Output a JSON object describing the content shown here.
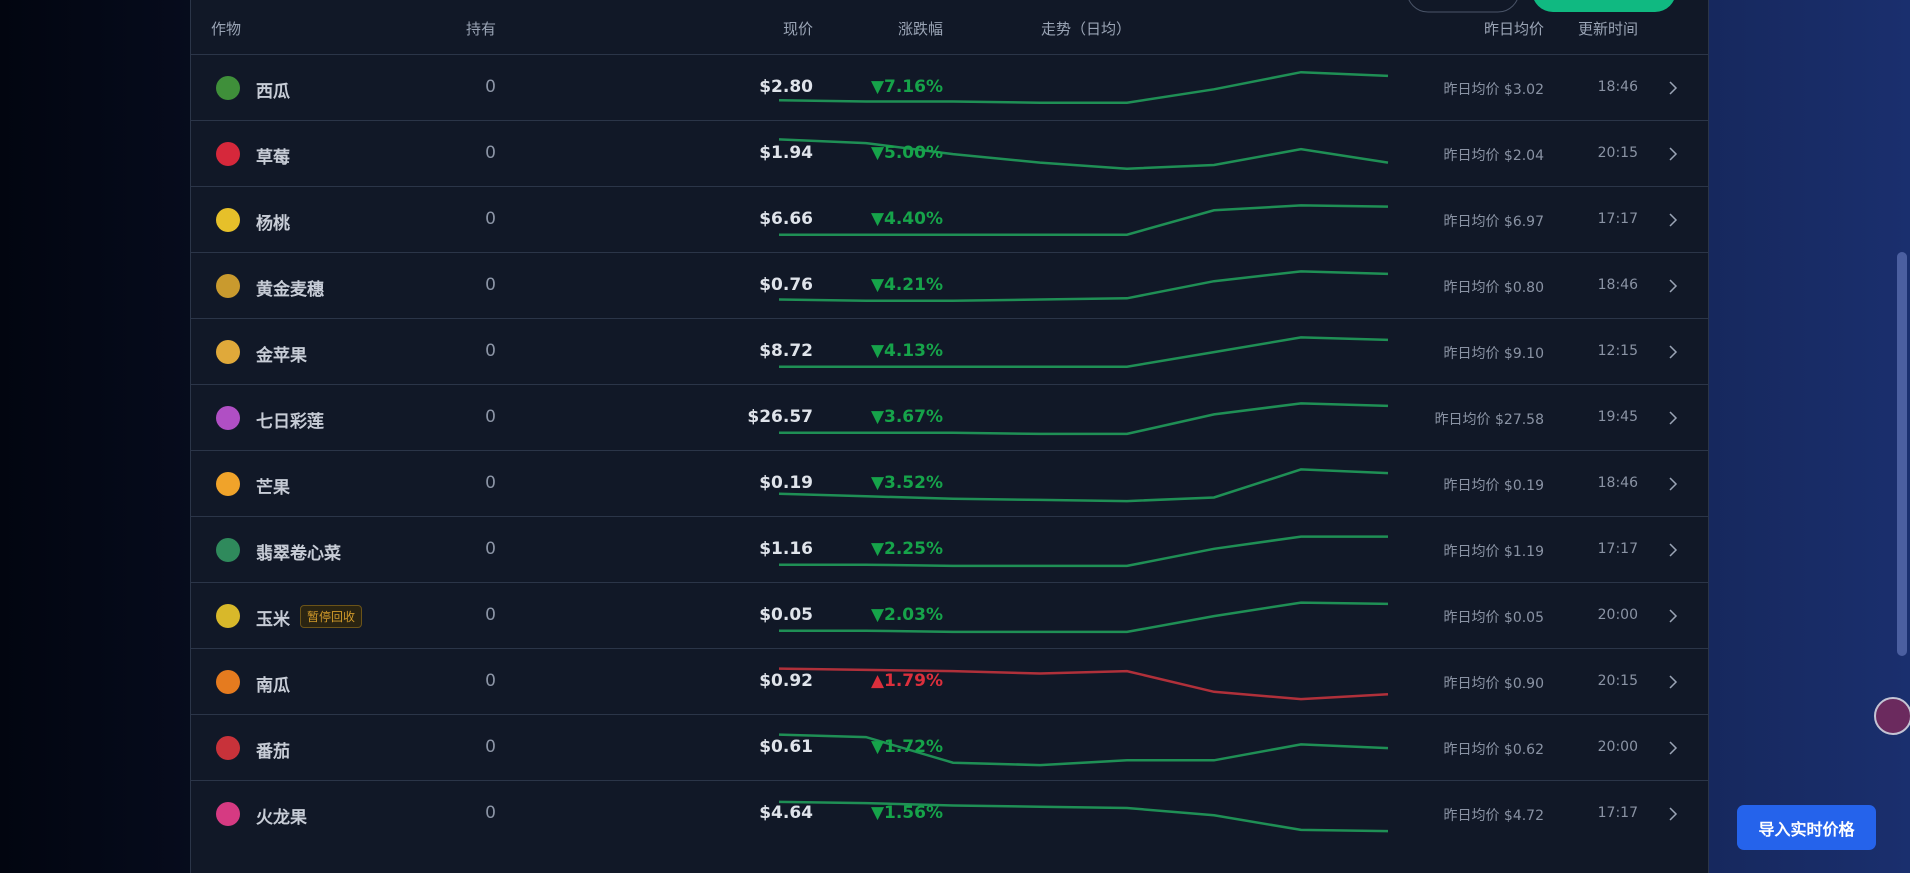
{
  "header": {
    "crop": "作物",
    "held": "持有",
    "price": "现价",
    "change": "涨跌幅",
    "trend": "走势（日均）",
    "yesterday": "昨日均价",
    "updated": "更新时间"
  },
  "rows": [
    {
      "icon_color": "#3f8f3a",
      "name": "西瓜",
      "held": "0",
      "price": "$2.80",
      "change": "▼7.16%",
      "direction": "down",
      "trend": [
        17,
        16,
        16,
        15,
        15,
        26,
        40,
        37
      ],
      "yesterday": "昨日均价 $3.02",
      "time": "18:46"
    },
    {
      "icon_color": "#d6283b",
      "name": "草莓",
      "held": "0",
      "price": "$1.94",
      "change": "▼5.00%",
      "direction": "down",
      "trend": [
        39,
        36,
        27,
        20,
        15,
        18,
        31,
        20
      ],
      "yesterday": "昨日均价 $2.04",
      "time": "20:15"
    },
    {
      "icon_color": "#e6c02a",
      "name": "杨桃",
      "held": "0",
      "price": "$6.66",
      "change": "▼4.40%",
      "direction": "down",
      "trend": [
        15,
        15,
        15,
        15,
        15,
        35,
        39,
        38
      ],
      "yesterday": "昨日均价 $6.97",
      "time": "17:17"
    },
    {
      "icon_color": "#c99a2e",
      "name": "黄金麦穗",
      "held": "0",
      "price": "$0.76",
      "change": "▼4.21%",
      "direction": "down",
      "trend": [
        16,
        15,
        15,
        16,
        17,
        31,
        39,
        37
      ],
      "yesterday": "昨日均价 $0.80",
      "time": "18:46"
    },
    {
      "icon_color": "#e0a93a",
      "name": "金苹果",
      "held": "0",
      "price": "$8.72",
      "change": "▼4.13%",
      "direction": "down",
      "trend": [
        15,
        15,
        15,
        15,
        15,
        27,
        39,
        37
      ],
      "yesterday": "昨日均价 $9.10",
      "time": "12:15"
    },
    {
      "icon_color": "#b04fc4",
      "name": "七日彩莲",
      "held": "0",
      "price": "$26.57",
      "change": "▼3.67%",
      "direction": "down",
      "trend": [
        15,
        15,
        15,
        14,
        14,
        30,
        39,
        37
      ],
      "yesterday": "昨日均价 $27.58",
      "time": "19:45"
    },
    {
      "icon_color": "#f0a32a",
      "name": "芒果",
      "held": "0",
      "price": "$0.19",
      "change": "▼3.52%",
      "direction": "down",
      "trend": [
        19,
        17,
        15,
        14,
        13,
        16,
        39,
        36
      ],
      "yesterday": "昨日均价 $0.19",
      "time": "18:46"
    },
    {
      "icon_color": "#2f8a5c",
      "name": "翡翠卷心菜",
      "held": "0",
      "price": "$1.16",
      "change": "▼2.25%",
      "direction": "down",
      "trend": [
        15,
        15,
        14,
        14,
        14,
        28,
        38,
        38
      ],
      "yesterday": "昨日均价 $1.19",
      "time": "17:17"
    },
    {
      "icon_color": "#d8b82a",
      "name": "玉米",
      "tag": "暂停回收",
      "held": "0",
      "price": "$0.05",
      "change": "▼2.03%",
      "direction": "down",
      "trend": [
        15,
        15,
        14,
        14,
        14,
        27,
        38,
        37
      ],
      "yesterday": "昨日均价 $0.05",
      "time": "20:00"
    },
    {
      "icon_color": "#e57b1f",
      "name": "南瓜",
      "held": "0",
      "price": "$0.92",
      "change": "▲1.79%",
      "direction": "up",
      "trend": [
        38,
        37,
        36,
        34,
        36,
        19,
        13,
        17
      ],
      "yesterday": "昨日均价 $0.90",
      "time": "20:15"
    },
    {
      "icon_color": "#c8323a",
      "name": "番茄",
      "held": "0",
      "price": "$0.61",
      "change": "▼1.72%",
      "direction": "down",
      "trend": [
        38,
        36,
        15,
        13,
        17,
        17,
        30,
        27
      ],
      "yesterday": "昨日均价 $0.62",
      "time": "20:00"
    },
    {
      "icon_color": "#d63a82",
      "name": "火龙果",
      "held": "0",
      "price": "$4.64",
      "change": "▼1.56%",
      "direction": "down",
      "trend": [
        37,
        36,
        34,
        33,
        32,
        26,
        14,
        13
      ],
      "yesterday": "昨日均价 $4.72",
      "time": "17:17"
    }
  ],
  "import_button": "导入实时价格"
}
